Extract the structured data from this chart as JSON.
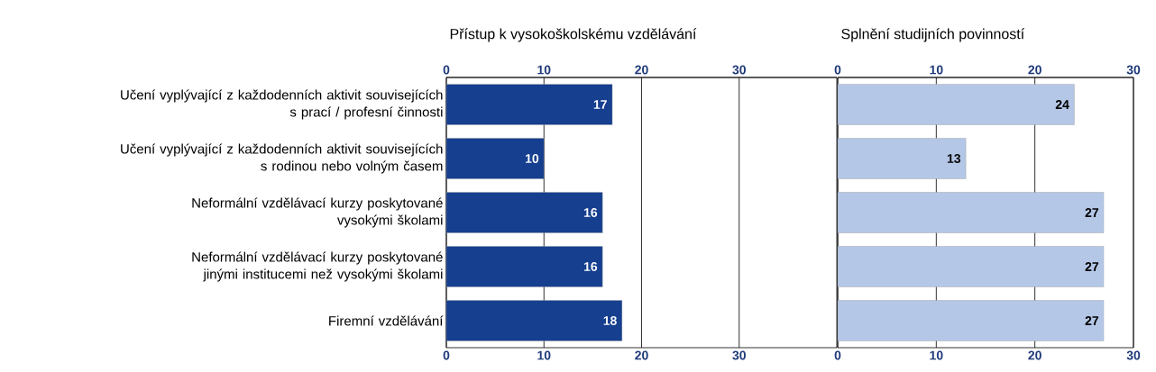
{
  "chart_data": [
    {
      "type": "bar",
      "orientation": "horizontal",
      "title": "Přístup k vysokoškolskému vzdělávání",
      "categories": [
        "Učení vyplývající z každodenních aktivit souvisejících\ns prací / profesní činnosti",
        "Učení vyplývající z každodenních aktivit souvisejících\ns rodinou nebo volným časem",
        "Neformální vzdělávací kurzy poskytované\nvysokými školami",
        "Neformální vzdělávací kurzy poskytované\njinými institucemi než vysokými školami",
        "Firemní vzdělávání"
      ],
      "values": [
        17,
        10,
        16,
        16,
        18
      ],
      "color": "#163f8f",
      "xlim": [
        0,
        40
      ],
      "xticks": [
        0,
        10,
        20,
        30
      ],
      "x2lim": [
        0,
        40
      ],
      "x2ticks": [
        0,
        10,
        20,
        30
      ],
      "grid": "x",
      "data_labels": true
    },
    {
      "type": "bar",
      "orientation": "horizontal",
      "title": "Splnění studijních povinností",
      "categories": [
        null,
        null,
        null,
        null,
        null
      ],
      "values": [
        24,
        13,
        27,
        27,
        27
      ],
      "color": "#b4c7e7",
      "xlim": [
        0,
        30
      ],
      "xticks": [
        0,
        10,
        20,
        30
      ],
      "x2lim": [
        0,
        30
      ],
      "x2ticks": [
        0,
        10,
        20,
        30
      ],
      "grid": "x",
      "data_labels": true,
      "tick_labels": "x"
    }
  ]
}
